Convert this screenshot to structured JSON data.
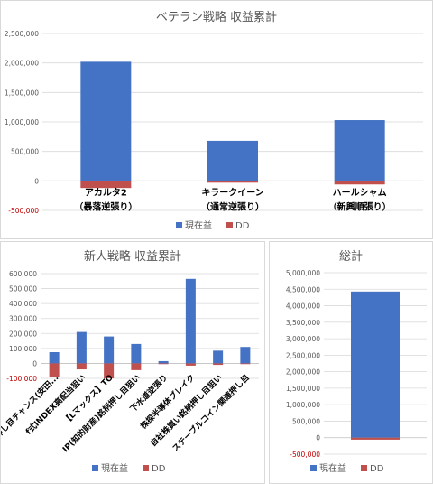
{
  "chart_data": [
    {
      "type": "bar",
      "title": "ベテラン戦略 収益累計",
      "categories": [
        [
          "アカルタ2",
          "（暴落逆張り）"
        ],
        [
          "キラークイーン",
          "（通常逆張り）"
        ],
        [
          "ハールシャム",
          "（新興順張り）"
        ]
      ],
      "series": [
        {
          "name": "現在益",
          "color": "#4472c4",
          "values": [
            2020000,
            680000,
            1030000
          ]
        },
        {
          "name": "DD",
          "color": "#c0504d",
          "values": [
            -120000,
            -30000,
            -60000
          ]
        }
      ],
      "yticks": [
        "2,500,000",
        "2,000,000",
        "1,500,000",
        "1,000,000",
        "500,000",
        "0",
        "-500,000"
      ],
      "ylim": [
        -500000,
        2500000
      ],
      "stacked": true,
      "legend": "bottom"
    },
    {
      "type": "bar",
      "title": "新人戦略 収益累計",
      "categories": [
        "高配当押し目チャンス(安田...",
        "f式INDEX高配当狙い",
        "【Lマックス】TO",
        "IP(知的財産)銘柄押し目狙い",
        "下水道逆張り",
        "株探半導体ブレイク",
        "自社株買い銘柄押し目狙い",
        "ステーブルコイン関連押し目"
      ],
      "series": [
        {
          "name": "現在益",
          "color": "#4472c4",
          "values": [
            75000,
            210000,
            180000,
            130000,
            15000,
            565000,
            85000,
            110000
          ]
        },
        {
          "name": "DD",
          "color": "#c0504d",
          "values": [
            -90000,
            -40000,
            -100000,
            -45000,
            -5000,
            -15000,
            -10000,
            -5000
          ]
        }
      ],
      "yticks": [
        "600,000",
        "500,000",
        "400,000",
        "300,000",
        "200,000",
        "100,000",
        "0",
        "-100,000"
      ],
      "ylim": [
        -100000,
        600000
      ],
      "stacked": true,
      "legend": "bottom"
    },
    {
      "type": "bar",
      "title": "総計",
      "categories": [
        ""
      ],
      "series": [
        {
          "name": "現在益",
          "color": "#4472c4",
          "values": [
            4430000
          ]
        },
        {
          "name": "DD",
          "color": "#c0504d",
          "values": [
            -60000
          ]
        }
      ],
      "yticks": [
        "5,000,000",
        "4,500,000",
        "4,000,000",
        "3,500,000",
        "3,000,000",
        "2,500,000",
        "2,000,000",
        "1,500,000",
        "1,000,000",
        "500,000",
        "0",
        "-500,000"
      ],
      "ylim": [
        -500000,
        5000000
      ],
      "stacked": true,
      "legend": "bottom"
    }
  ]
}
